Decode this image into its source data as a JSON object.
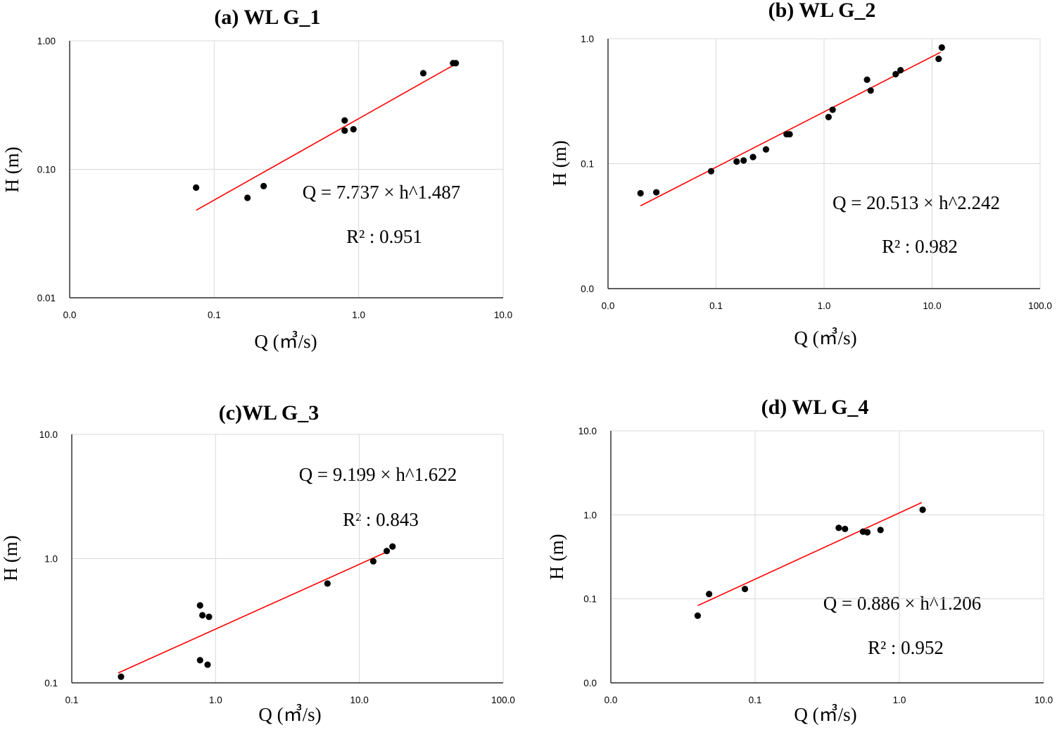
{
  "chart_data": [
    {
      "type": "scatter",
      "title": "(a) WL G_1",
      "xlabel": "Q (㎥/s)",
      "ylabel": "H  (m)",
      "xscale": "log",
      "yscale": "log",
      "xlim": [
        0.01,
        10
      ],
      "ylim": [
        0.01,
        1
      ],
      "xticks": [
        0.01,
        0.1,
        1,
        10
      ],
      "xtick_labels": [
        "0.0",
        "0.1",
        "1.0",
        "10.0"
      ],
      "yticks": [
        0.01,
        0.1,
        1
      ],
      "ytick_labels": [
        "0.01",
        "0.10",
        "1.00"
      ],
      "grid": true,
      "points": [
        [
          0.075,
          0.072
        ],
        [
          0.17,
          0.06
        ],
        [
          0.22,
          0.074
        ],
        [
          0.8,
          0.24
        ],
        [
          0.8,
          0.2
        ],
        [
          0.92,
          0.205
        ],
        [
          2.8,
          0.56
        ],
        [
          4.5,
          0.67
        ],
        [
          4.7,
          0.67
        ]
      ],
      "fit_line": [
        [
          0.075,
          0.048
        ],
        [
          4.8,
          0.67
        ]
      ],
      "equation": "Q = 7.737 × h^1.487",
      "r2": "R² : 0.951"
    },
    {
      "type": "scatter",
      "title": "(b) WL G_2",
      "xlabel": "Q (㎥/s)",
      "ylabel": "H  (m)",
      "xscale": "log",
      "yscale": "log",
      "xlim": [
        0.01,
        100
      ],
      "ylim": [
        0.01,
        1
      ],
      "xticks": [
        0.01,
        0.1,
        1,
        10,
        100
      ],
      "xtick_labels": [
        "0.0",
        "0.1",
        "1.0",
        "10.0",
        "100.0"
      ],
      "yticks": [
        0.01,
        0.1,
        1
      ],
      "ytick_labels": [
        "0.0",
        "0.1",
        "1.0"
      ],
      "grid": true,
      "points": [
        [
          0.02,
          0.058
        ],
        [
          0.028,
          0.059
        ],
        [
          0.09,
          0.087
        ],
        [
          0.155,
          0.104
        ],
        [
          0.18,
          0.106
        ],
        [
          0.22,
          0.113
        ],
        [
          0.29,
          0.13
        ],
        [
          0.45,
          0.172
        ],
        [
          0.48,
          0.172
        ],
        [
          1.1,
          0.236
        ],
        [
          1.2,
          0.27
        ],
        [
          2.5,
          0.47
        ],
        [
          2.7,
          0.385
        ],
        [
          4.6,
          0.52
        ],
        [
          5.1,
          0.56
        ],
        [
          11.5,
          0.69
        ],
        [
          12.3,
          0.85
        ]
      ],
      "fit_line": [
        [
          0.02,
          0.046
        ],
        [
          12.0,
          0.78
        ]
      ],
      "equation": "Q = 20.513 × h^2.242",
      "r2": "R² : 0.982"
    },
    {
      "type": "scatter",
      "title": "(c)WL G_3",
      "xlabel": "Q (㎥/s)",
      "ylabel": "H  (m)",
      "xscale": "log",
      "yscale": "log",
      "xlim": [
        0.1,
        100
      ],
      "ylim": [
        0.1,
        10
      ],
      "xticks": [
        0.1,
        1,
        10,
        100
      ],
      "xtick_labels": [
        "0.1",
        "1.0",
        "10.0",
        "100.0"
      ],
      "yticks": [
        0.1,
        1,
        10
      ],
      "ytick_labels": [
        "0.1",
        "1.0",
        "10.0"
      ],
      "grid": true,
      "points": [
        [
          0.22,
          0.112
        ],
        [
          0.78,
          0.42
        ],
        [
          0.81,
          0.35
        ],
        [
          0.9,
          0.34
        ],
        [
          0.78,
          0.152
        ],
        [
          0.88,
          0.14
        ],
        [
          6.0,
          0.63
        ],
        [
          12.5,
          0.95
        ],
        [
          15.5,
          1.15
        ],
        [
          17.0,
          1.25
        ]
      ],
      "fit_line": [
        [
          0.21,
          0.12
        ],
        [
          16.0,
          1.15
        ]
      ],
      "equation": "Q = 9.199 × h^1.622",
      "r2": "R² : 0.843"
    },
    {
      "type": "scatter",
      "title": "(d) WL G_4",
      "xlabel": "Q (㎥/s)",
      "ylabel": "H  (m)",
      "xscale": "log",
      "yscale": "log",
      "xlim": [
        0.01,
        10
      ],
      "ylim": [
        0.01,
        10
      ],
      "xticks": [
        0.01,
        0.1,
        1,
        10
      ],
      "xtick_labels": [
        "0.0",
        "0.1",
        "1.0",
        "10.0"
      ],
      "yticks": [
        0.01,
        0.1,
        1,
        10
      ],
      "ytick_labels": [
        "0.0",
        "0.1",
        "1.0",
        "10.0"
      ],
      "grid": true,
      "points": [
        [
          0.04,
          0.063
        ],
        [
          0.048,
          0.114
        ],
        [
          0.085,
          0.131
        ],
        [
          0.38,
          0.7
        ],
        [
          0.42,
          0.68
        ],
        [
          0.56,
          0.63
        ],
        [
          0.6,
          0.62
        ],
        [
          0.74,
          0.66
        ],
        [
          1.45,
          1.15
        ]
      ],
      "fit_line": [
        [
          0.04,
          0.083
        ],
        [
          1.43,
          1.4
        ]
      ],
      "equation": "Q = 0.886 × h^1.206",
      "r2": "R² : 0.952"
    }
  ]
}
